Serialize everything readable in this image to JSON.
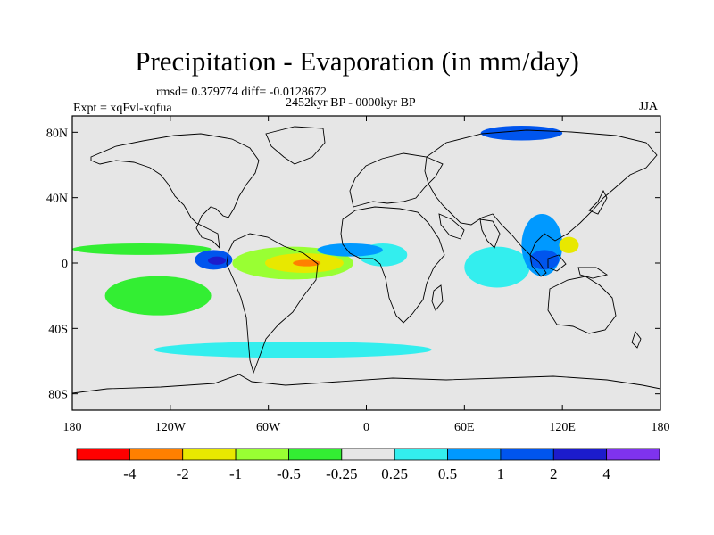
{
  "plot": {
    "title": "Precipitation - Evaporation (in mm/day)",
    "stats": "rmsd= 0.379774 diff= -0.0128672",
    "period": "2452kyr BP - 0000kyr BP",
    "experiment": "Expt = xqFvl-xqfua",
    "season": "JJA"
  },
  "axes": {
    "lat_labels": [
      "80N",
      "40N",
      "0",
      "40S",
      "80S"
    ],
    "lat_values": [
      80,
      40,
      0,
      -40,
      -80
    ],
    "lon_labels": [
      "180",
      "120W",
      "60W",
      "0",
      "60E",
      "120E",
      "180"
    ],
    "lon_values": [
      -180,
      -120,
      -60,
      0,
      60,
      120,
      180
    ],
    "lat_range": [
      -90,
      90
    ],
    "lon_range": [
      -180,
      180
    ]
  },
  "colorbar": {
    "colors": [
      "#ff0000",
      "#ff8000",
      "#e8e800",
      "#99ff33",
      "#33ee33",
      "#e6e6e6",
      "#33eeee",
      "#0099ff",
      "#0055ee",
      "#1c1ccc",
      "#7f33ee"
    ],
    "labels": [
      "-4",
      "-2",
      "-1",
      "-0.5",
      "-0.25",
      "0.25",
      "0.5",
      "1",
      "2",
      "4"
    ]
  },
  "colors": {
    "ocean_background": "#e6e6e6",
    "coastline": "#000000"
  },
  "anomaly_regions": [
    {
      "name": "atlantic-itcz-dry-core",
      "level": "-2",
      "color": "#ff8000",
      "lon": [
        -45,
        -28
      ],
      "lat": [
        -2,
        2
      ]
    },
    {
      "name": "atlantic-itcz-dry",
      "level": "-1",
      "color": "#e8e800",
      "lon": [
        -62,
        -14
      ],
      "lat": [
        -6,
        6
      ]
    },
    {
      "name": "atlantic-itcz-dry-halo",
      "level": "-0.5",
      "color": "#99ff33",
      "lon": [
        -82,
        -8
      ],
      "lat": [
        -10,
        10
      ]
    },
    {
      "name": "atlantic-itcz-moist-north",
      "level": "1",
      "color": "#0099ff",
      "lon": [
        -30,
        10
      ],
      "lat": [
        4,
        12
      ]
    },
    {
      "name": "east-pacific-wet",
      "level": "2",
      "color": "#0055ee",
      "lon": [
        -105,
        -82
      ],
      "lat": [
        -4,
        8
      ]
    },
    {
      "name": "east-pacific-wet-core",
      "level": "4",
      "color": "#1c1ccc",
      "lon": [
        -97,
        -86
      ],
      "lat": [
        -1,
        4
      ]
    },
    {
      "name": "north-pacific-band",
      "level": "-0.25",
      "color": "#33ee33",
      "lon": [
        -180,
        -95
      ],
      "lat": [
        5,
        12
      ]
    },
    {
      "name": "south-pacific-band",
      "level": "-0.25",
      "color": "#33ee33",
      "lon": [
        -160,
        -95
      ],
      "lat": [
        -32,
        -8
      ]
    },
    {
      "name": "west-pacific-dry",
      "level": "-1",
      "color": "#e8e800",
      "lon": [
        118,
        130
      ],
      "lat": [
        6,
        16
      ]
    },
    {
      "name": "west-pacific-wet",
      "level": "1",
      "color": "#0099ff",
      "lon": [
        95,
        120
      ],
      "lat": [
        -8,
        30
      ]
    },
    {
      "name": "maritime-wet-core",
      "level": "2",
      "color": "#0055ee",
      "lon": [
        100,
        118
      ],
      "lat": [
        -4,
        8
      ]
    },
    {
      "name": "indian-ocean-moist",
      "level": "0.5",
      "color": "#33eeee",
      "lon": [
        60,
        100
      ],
      "lat": [
        -15,
        10
      ]
    },
    {
      "name": "arctic-wet",
      "level": "2",
      "color": "#0055ee",
      "lon": [
        70,
        120
      ],
      "lat": [
        75,
        84
      ]
    },
    {
      "name": "southern-ocean-moist",
      "level": "0.5",
      "color": "#33eeee",
      "lon": [
        -130,
        40
      ],
      "lat": [
        -58,
        -48
      ]
    },
    {
      "name": "africa-moist",
      "level": "0.5",
      "color": "#33eeee",
      "lon": [
        -5,
        25
      ],
      "lat": [
        -2,
        12
      ]
    }
  ]
}
